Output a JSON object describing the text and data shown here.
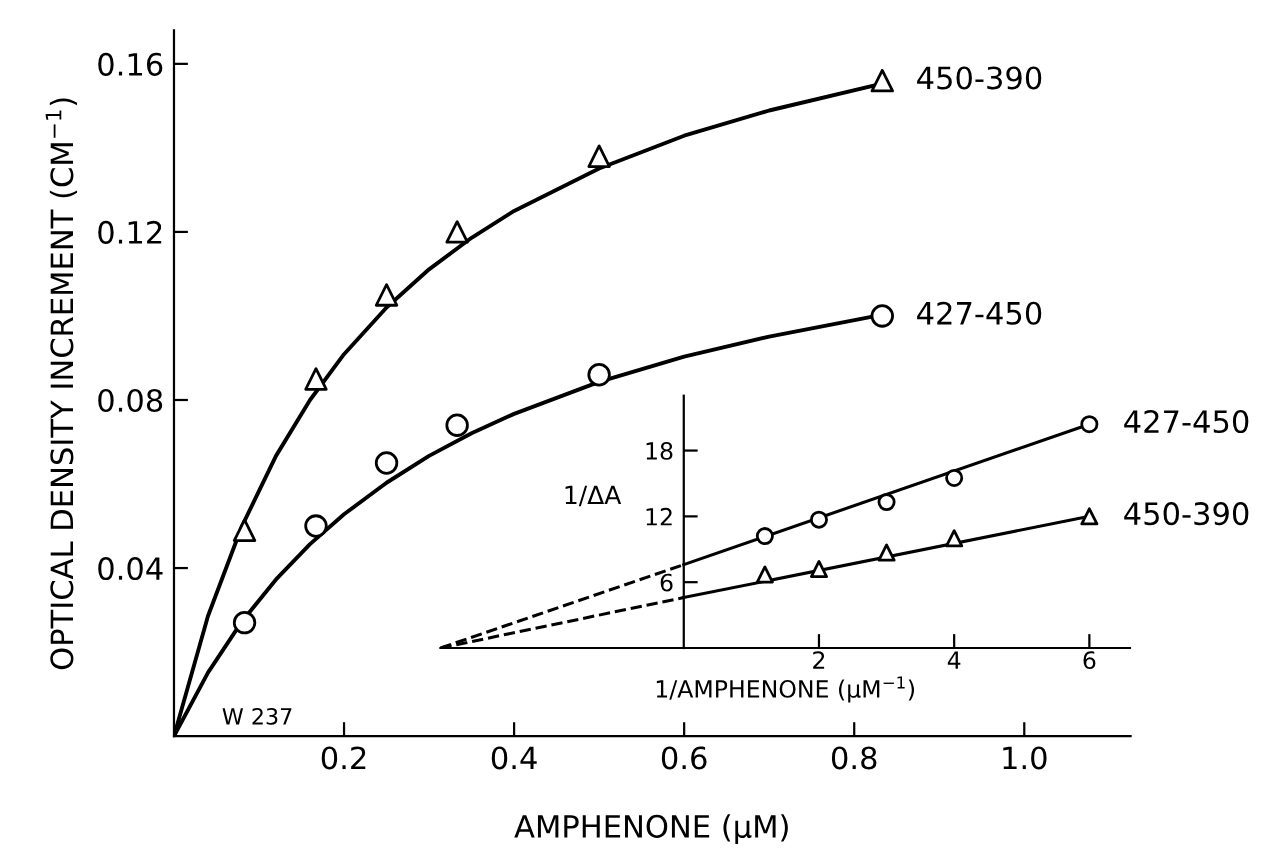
{
  "chart_data": [
    {
      "type": "scatter",
      "xlabel": "AMPHENONE (μM)",
      "ylabel": "OPTICAL DENSITY INCREMENT (CM$^{−1}$)",
      "xlim": [
        0,
        1.125
      ],
      "ylim": [
        0,
        0.168
      ],
      "xticks": [
        0.2,
        0.4,
        0.6,
        0.8,
        {
          "value": 1.0,
          "label": "1.0"
        }
      ],
      "yticks": [
        0.04,
        0.08,
        0.12,
        0.16
      ],
      "grid": false,
      "legend": false,
      "annotations": [
        "W 237"
      ],
      "series": [
        {
          "name": "450-390",
          "marker": "triangle",
          "color": "#000000",
          "x": [
            0.083,
            0.167,
            0.25,
            0.333,
            0.5,
            0.833
          ],
          "values": [
            0.049,
            0.085,
            0.105,
            0.12,
            0.138,
            0.156
          ]
        },
        {
          "name": "427-450",
          "marker": "circle",
          "color": "#000000",
          "x": [
            0.083,
            0.167,
            0.25,
            0.333,
            0.5,
            0.833
          ],
          "values": [
            0.027,
            0.05,
            0.065,
            0.074,
            0.086,
            0.1
          ]
        },
        {
          "type": "line",
          "marker": "none",
          "line_style": "solid",
          "color": "#000000",
          "x": [
            0,
            0.04,
            0.08,
            0.12,
            0.16,
            0.2,
            0.25,
            0.3,
            0.35,
            0.4,
            0.5,
            0.6,
            0.7,
            0.833
          ],
          "values": [
            0,
            0.0286,
            0.05,
            0.0667,
            0.08,
            0.0909,
            0.102,
            0.1111,
            0.1186,
            0.125,
            0.1351,
            0.1429,
            0.1489,
            0.1553
          ]
        },
        {
          "type": "line",
          "marker": "none",
          "line_style": "solid",
          "color": "#000000",
          "x": [
            0,
            0.04,
            0.08,
            0.12,
            0.16,
            0.2,
            0.25,
            0.3,
            0.35,
            0.4,
            0.5,
            0.6,
            0.7,
            0.833
          ],
          "values": [
            0,
            0.0151,
            0.0273,
            0.0373,
            0.0457,
            0.0528,
            0.0603,
            0.0667,
            0.0721,
            0.0767,
            0.0843,
            0.0903,
            0.0951,
            0.1003
          ]
        }
      ]
    },
    {
      "type": "scatter",
      "xlabel": "1/AMPHENONE (μM$^{−1}$)",
      "ylabel": "1/ΔA",
      "xlim": [
        -3.6,
        6.6
      ],
      "ylim": [
        0,
        23
      ],
      "xticks": [
        2,
        4,
        6
      ],
      "yticks": [
        6,
        12,
        18
      ],
      "grid": false,
      "legend": false,
      "series": [
        {
          "name": "427-450",
          "marker": "circle",
          "color": "#000000",
          "x": [
            1.2,
            2,
            3,
            4,
            6
          ],
          "values": [
            10.2,
            11.7,
            13.3,
            15.5,
            20.4
          ]
        },
        {
          "name": "450-390",
          "marker": "triangle",
          "color": "#000000",
          "x": [
            1.2,
            2,
            3,
            4,
            6
          ],
          "values": [
            6.7,
            7.2,
            8.7,
            10,
            12
          ]
        },
        {
          "type": "line",
          "marker": "none",
          "line_style": "solid",
          "color": "#000000",
          "x": [
            0,
            6
          ],
          "values": [
            7.6,
            20.4
          ]
        },
        {
          "type": "line",
          "marker": "none",
          "line_style": "solid",
          "color": "#000000",
          "x": [
            0,
            6
          ],
          "values": [
            4.6,
            12
          ]
        },
        {
          "type": "line",
          "marker": "none",
          "line_style": "dashed",
          "color": "#000000",
          "x": [
            -3.6,
            0
          ],
          "values": [
            0,
            7.6
          ]
        },
        {
          "type": "line",
          "marker": "none",
          "line_style": "dashed",
          "color": "#000000",
          "x": [
            -3.6,
            0
          ],
          "values": [
            0,
            4.6
          ]
        }
      ]
    }
  ]
}
